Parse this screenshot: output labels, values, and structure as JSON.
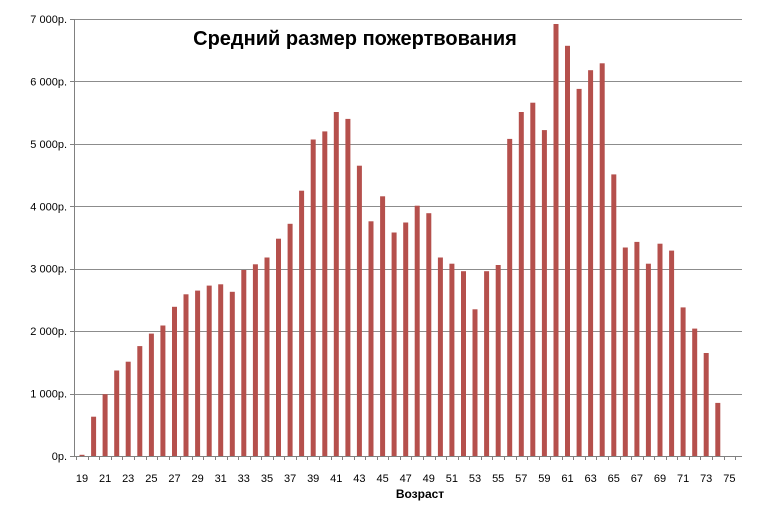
{
  "chart_data": {
    "type": "bar",
    "title": "Средний размер пожертвования",
    "xlabel": "Возраст",
    "ylabel": "",
    "ylim": [
      0,
      7000
    ],
    "grid": true,
    "legend": "none",
    "bar_color": "#b5504c",
    "grid_color": "#8c8c8c",
    "categories": [
      "19",
      "20",
      "21",
      "22",
      "23",
      "24",
      "25",
      "26",
      "27",
      "28",
      "29",
      "30",
      "31",
      "32",
      "33",
      "34",
      "35",
      "36",
      "37",
      "38",
      "39",
      "40",
      "41",
      "42",
      "43",
      "44",
      "45",
      "46",
      "47",
      "48",
      "49",
      "50",
      "51",
      "52",
      "53",
      "54",
      "55",
      "56",
      "57",
      "58",
      "59",
      "60",
      "61",
      "62",
      "63",
      "64",
      "65",
      "66",
      "67",
      "68",
      "69",
      "70",
      "71",
      "72",
      "73",
      "74"
    ],
    "x_tick_labels": [
      "19",
      "21",
      "23",
      "25",
      "27",
      "29",
      "31",
      "33",
      "35",
      "37",
      "39",
      "41",
      "43",
      "45",
      "47",
      "49",
      "51",
      "53",
      "55",
      "57",
      "59",
      "61",
      "63",
      "65",
      "67",
      "69",
      "71",
      "73",
      "75"
    ],
    "y_tick_labels": [
      "0р.",
      "1 000р.",
      "2 000р.",
      "3 000р.",
      "4 000р.",
      "5 000р.",
      "6 000р.",
      "7 000р."
    ],
    "y_tick_values": [
      0,
      1000,
      2000,
      3000,
      4000,
      5000,
      6000,
      7000
    ],
    "values": [
      20,
      630,
      990,
      1370,
      1510,
      1760,
      1960,
      2090,
      2390,
      2590,
      2650,
      2730,
      2750,
      2630,
      2980,
      3070,
      3180,
      3480,
      3720,
      4250,
      5070,
      5200,
      5510,
      5400,
      4650,
      3760,
      4160,
      3580,
      3740,
      4010,
      3890,
      3180,
      3080,
      2960,
      2350,
      2960,
      3060,
      5080,
      5510,
      5660,
      5220,
      6920,
      6570,
      5880,
      6180,
      6290,
      4510,
      3340,
      3430,
      3080,
      3400,
      3290,
      2380,
      2040,
      1650,
      850
    ]
  }
}
